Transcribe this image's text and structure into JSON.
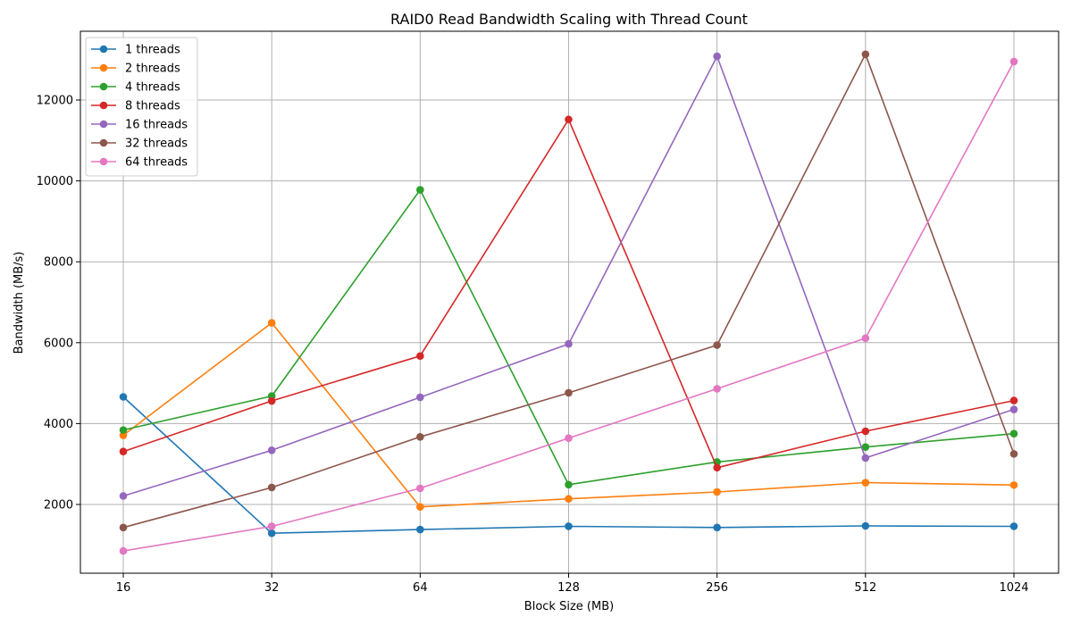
{
  "chart_data": {
    "type": "line",
    "title": "RAID0 Read Bandwidth Scaling with Thread Count",
    "xlabel": "Block Size (MB)",
    "ylabel": "Bandwidth (MB/s)",
    "categories": [
      "16",
      "32",
      "64",
      "128",
      "256",
      "512",
      "1024"
    ],
    "yticks": [
      2000,
      4000,
      6000,
      8000,
      10000,
      12000
    ],
    "ylim": [
      300,
      13700
    ],
    "grid": true,
    "legend_position": "top-left",
    "series": [
      {
        "name": "1 threads",
        "color": "#1f77b4",
        "values": [
          4660,
          1290,
          1380,
          1460,
          1430,
          1470,
          1460
        ]
      },
      {
        "name": "2 threads",
        "color": "#ff7f0e",
        "values": [
          3710,
          6490,
          1940,
          2140,
          2310,
          2540,
          2480
        ]
      },
      {
        "name": "4 threads",
        "color": "#2ca02c",
        "values": [
          3840,
          4680,
          9780,
          2490,
          3050,
          3420,
          3750
        ]
      },
      {
        "name": "8 threads",
        "color": "#d62728",
        "values": [
          3310,
          4560,
          5670,
          11520,
          2910,
          3810,
          4570
        ]
      },
      {
        "name": "16 threads",
        "color": "#9467bd",
        "values": [
          2210,
          3340,
          4650,
          5970,
          13080,
          3150,
          4350
        ]
      },
      {
        "name": "32 threads",
        "color": "#8c564b",
        "values": [
          1430,
          2420,
          3670,
          4760,
          5940,
          13130,
          3250
        ]
      },
      {
        "name": "64 threads",
        "color": "#e377c2",
        "values": [
          850,
          1460,
          2400,
          3640,
          4860,
          6110,
          12950
        ]
      }
    ]
  }
}
